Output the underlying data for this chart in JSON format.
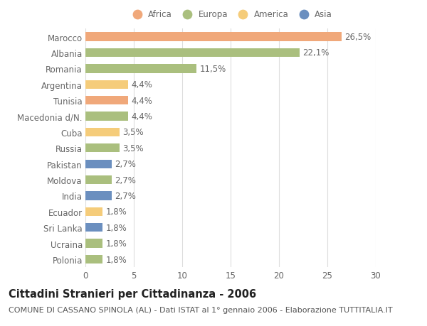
{
  "countries": [
    "Marocco",
    "Albania",
    "Romania",
    "Argentina",
    "Tunisia",
    "Macedonia d/N.",
    "Cuba",
    "Russia",
    "Pakistan",
    "Moldova",
    "India",
    "Ecuador",
    "Sri Lanka",
    "Ucraina",
    "Polonia"
  ],
  "values": [
    26.5,
    22.1,
    11.5,
    4.4,
    4.4,
    4.4,
    3.5,
    3.5,
    2.7,
    2.7,
    2.7,
    1.8,
    1.8,
    1.8,
    1.8
  ],
  "continents": [
    "Africa",
    "Europa",
    "Europa",
    "America",
    "Africa",
    "Europa",
    "America",
    "Europa",
    "Asia",
    "Europa",
    "Asia",
    "America",
    "Asia",
    "Europa",
    "Europa"
  ],
  "continent_colors": {
    "Africa": "#F0A87A",
    "Europa": "#AABF7E",
    "America": "#F5CC7A",
    "Asia": "#6B8FBF"
  },
  "legend_order": [
    "Africa",
    "Europa",
    "America",
    "Asia"
  ],
  "title": "Cittadini Stranieri per Cittadinanza - 2006",
  "subtitle": "COMUNE DI CASSANO SPINOLA (AL) - Dati ISTAT al 1° gennaio 2006 - Elaborazione TUTTITALIA.IT",
  "xlim": [
    0,
    30
  ],
  "xticks": [
    0,
    5,
    10,
    15,
    20,
    25,
    30
  ],
  "background_color": "#ffffff",
  "grid_color": "#dddddd",
  "bar_height": 0.55,
  "label_fontsize": 8.5,
  "title_fontsize": 10.5,
  "subtitle_fontsize": 8,
  "tick_fontsize": 8.5
}
